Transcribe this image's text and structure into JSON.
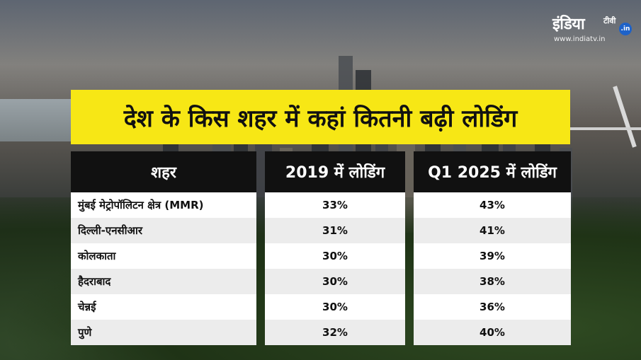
{
  "logo": {
    "name": "इंडिया",
    "tv": "टीवी",
    "in_badge": ".in",
    "url": "www.indiatv.in"
  },
  "title": "देश के किस शहर में कहां कितनी बढ़ी लोडिंग",
  "table": {
    "headers": [
      "शहर",
      "2019 में लोडिंग",
      "Q1 2025 में लोडिंग"
    ],
    "rows": [
      {
        "city": "मुंबई मेट्रोपॉलिटन क्षेत्र (MMR)",
        "y2019": "33%",
        "q1_2025": "43%"
      },
      {
        "city": "दिल्ली-एनसीआर",
        "y2019": "31%",
        "q1_2025": "41%"
      },
      {
        "city": "कोलकाता",
        "y2019": "30%",
        "q1_2025": "39%"
      },
      {
        "city": "हैदराबाद",
        "y2019": "30%",
        "q1_2025": "38%"
      },
      {
        "city": "चेन्नई",
        "y2019": "30%",
        "q1_2025": "36%"
      },
      {
        "city": "पुणे",
        "y2019": "32%",
        "q1_2025": "40%"
      }
    ]
  },
  "colors": {
    "title_bg": "#f7e715",
    "header_bg": "#111111",
    "row_alt": "#ececec"
  }
}
